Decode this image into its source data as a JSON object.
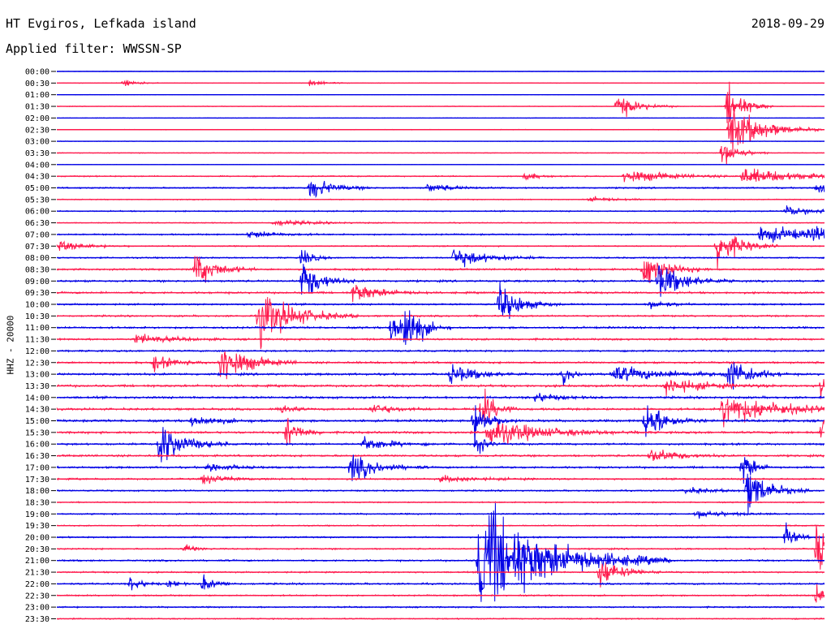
{
  "header": {
    "station": "HT Evgiros, Lefkada island",
    "date": "2018-09-29",
    "filter": "Applied filter: WWSSN-SP",
    "channel": "HHZ - 20000"
  },
  "colors": {
    "even": "#0000e6",
    "odd": "#ff1a4d"
  },
  "chart_data": {
    "type": "line",
    "title": "HT Evgiros, Lefkada island",
    "subtitle": "Applied filter: WWSSN-SP",
    "ylabel": "HHZ - 20000",
    "tick_labels": [
      "00:00",
      "00:30",
      "01:00",
      "01:30",
      "02:00",
      "02:30",
      "03:00",
      "03:30",
      "04:00",
      "04:30",
      "05:00",
      "05:30",
      "06:00",
      "06:30",
      "07:00",
      "07:30",
      "08:00",
      "08:30",
      "09:00",
      "09:30",
      "10:00",
      "10:30",
      "11:00",
      "11:30",
      "12:00",
      "12:30",
      "13:00",
      "13:30",
      "14:00",
      "14:30",
      "15:00",
      "15:30",
      "16:00",
      "16:30",
      "17:00",
      "17:30",
      "18:00",
      "18:30",
      "19:00",
      "19:30",
      "20:00",
      "20:30",
      "21:00",
      "21:30",
      "22:00",
      "22:30",
      "23:00",
      "23:30"
    ],
    "x_range_minutes": [
      0,
      30
    ],
    "noise": [
      0.4,
      0.5,
      0.4,
      0.5,
      0.4,
      0.5,
      0.4,
      0.6,
      0.4,
      1.0,
      1.2,
      0.8,
      1.0,
      0.8,
      1.2,
      1.0,
      1.2,
      1.5,
      1.6,
      1.6,
      1.4,
      1.4,
      1.6,
      1.6,
      1.4,
      1.6,
      1.8,
      1.8,
      1.8,
      1.8,
      1.8,
      1.8,
      1.6,
      1.6,
      1.6,
      1.4,
      1.2,
      1.0,
      1.2,
      1.0,
      1.2,
      1.2,
      1.4,
      1.2,
      1.4,
      1.2,
      1.2,
      1.0
    ],
    "events": [
      {
        "trace": "00:30",
        "t": 2.6,
        "amp": 4,
        "dur": 0.5
      },
      {
        "trace": "00:30",
        "t": 9.9,
        "amp": 3,
        "dur": 0.6
      },
      {
        "trace": "01:30",
        "t": 21.9,
        "amp": 12,
        "dur": 0.8
      },
      {
        "trace": "01:30",
        "t": 26.2,
        "amp": 26,
        "dur": 0.6
      },
      {
        "trace": "02:30",
        "t": 26.3,
        "amp": 26,
        "dur": 1.2
      },
      {
        "trace": "03:30",
        "t": 26.0,
        "amp": 14,
        "dur": 0.6
      },
      {
        "trace": "04:30",
        "t": 18.3,
        "amp": 5,
        "dur": 0.4
      },
      {
        "trace": "04:30",
        "t": 22.2,
        "amp": 7,
        "dur": 1.6
      },
      {
        "trace": "04:30",
        "t": 26.8,
        "amp": 8,
        "dur": 2.2
      },
      {
        "trace": "05:00",
        "t": 9.9,
        "amp": 12,
        "dur": 0.8
      },
      {
        "trace": "05:00",
        "t": 14.5,
        "amp": 4,
        "dur": 1.0
      },
      {
        "trace": "05:00",
        "t": 29.7,
        "amp": 10,
        "dur": 0.4
      },
      {
        "trace": "05:30",
        "t": 20.8,
        "amp": 3,
        "dur": 1.0
      },
      {
        "trace": "06:00",
        "t": 28.5,
        "amp": 5,
        "dur": 1.2
      },
      {
        "trace": "06:30",
        "t": 8.5,
        "amp": 3,
        "dur": 1.5
      },
      {
        "trace": "07:00",
        "t": 7.5,
        "amp": 4,
        "dur": 1.0
      },
      {
        "trace": "07:00",
        "t": 27.5,
        "amp": 8,
        "dur": 2.5
      },
      {
        "trace": "07:00",
        "t": 29.6,
        "amp": 7,
        "dur": 0.6
      },
      {
        "trace": "07:30",
        "t": 0.1,
        "amp": 5,
        "dur": 1.0
      },
      {
        "trace": "07:30",
        "t": 25.8,
        "amp": 22,
        "dur": 0.8
      },
      {
        "trace": "08:00",
        "t": 15.5,
        "amp": 10,
        "dur": 1.2
      },
      {
        "trace": "08:00",
        "t": 9.6,
        "amp": 10,
        "dur": 0.4
      },
      {
        "trace": "08:30",
        "t": 5.4,
        "amp": 18,
        "dur": 0.8
      },
      {
        "trace": "08:30",
        "t": 22.9,
        "amp": 18,
        "dur": 0.9
      },
      {
        "trace": "09:00",
        "t": 9.6,
        "amp": 22,
        "dur": 0.7
      },
      {
        "trace": "09:00",
        "t": 23.5,
        "amp": 18,
        "dur": 1.0
      },
      {
        "trace": "09:30",
        "t": 11.6,
        "amp": 10,
        "dur": 1.0
      },
      {
        "trace": "10:00",
        "t": 17.3,
        "amp": 20,
        "dur": 0.8
      },
      {
        "trace": "10:00",
        "t": 23.2,
        "amp": 5,
        "dur": 0.6
      },
      {
        "trace": "10:30",
        "t": 7.9,
        "amp": 28,
        "dur": 1.3
      },
      {
        "trace": "11:00",
        "t": 13.1,
        "amp": 22,
        "dur": 0.5
      },
      {
        "trace": "11:00",
        "t": 13.6,
        "amp": 28,
        "dur": 0.6
      },
      {
        "trace": "11:30",
        "t": 3.1,
        "amp": 5,
        "dur": 1.2
      },
      {
        "trace": "12:30",
        "t": 3.8,
        "amp": 8,
        "dur": 0.7
      },
      {
        "trace": "12:30",
        "t": 6.4,
        "amp": 22,
        "dur": 1.0
      },
      {
        "trace": "13:00",
        "t": 15.4,
        "amp": 10,
        "dur": 1.0
      },
      {
        "trace": "13:00",
        "t": 19.8,
        "amp": 8,
        "dur": 0.4
      },
      {
        "trace": "13:00",
        "t": 21.7,
        "amp": 8,
        "dur": 2.0
      },
      {
        "trace": "13:00",
        "t": 26.2,
        "amp": 20,
        "dur": 0.8
      },
      {
        "trace": "13:30",
        "t": 23.8,
        "amp": 8,
        "dur": 1.5
      },
      {
        "trace": "13:30",
        "t": 29.9,
        "amp": 16,
        "dur": 0.4
      },
      {
        "trace": "14:00",
        "t": 18.7,
        "amp": 5,
        "dur": 0.8
      },
      {
        "trace": "14:30",
        "t": 8.8,
        "amp": 6,
        "dur": 0.4
      },
      {
        "trace": "14:30",
        "t": 12.3,
        "amp": 6,
        "dur": 0.8
      },
      {
        "trace": "14:30",
        "t": 16.6,
        "amp": 22,
        "dur": 0.5
      },
      {
        "trace": "14:30",
        "t": 26.0,
        "amp": 16,
        "dur": 2.2
      },
      {
        "trace": "15:00",
        "t": 5.3,
        "amp": 6,
        "dur": 1.0
      },
      {
        "trace": "15:00",
        "t": 16.3,
        "amp": 20,
        "dur": 0.6
      },
      {
        "trace": "15:00",
        "t": 23.0,
        "amp": 20,
        "dur": 0.8
      },
      {
        "trace": "15:30",
        "t": 9.0,
        "amp": 16,
        "dur": 0.5
      },
      {
        "trace": "15:30",
        "t": 16.8,
        "amp": 14,
        "dur": 2.0
      },
      {
        "trace": "15:30",
        "t": 29.9,
        "amp": 18,
        "dur": 0.5
      },
      {
        "trace": "16:00",
        "t": 4.0,
        "amp": 24,
        "dur": 0.9
      },
      {
        "trace": "16:00",
        "t": 12.0,
        "amp": 8,
        "dur": 0.9
      },
      {
        "trace": "16:00",
        "t": 16.4,
        "amp": 14,
        "dur": 0.3
      },
      {
        "trace": "16:30",
        "t": 23.2,
        "amp": 8,
        "dur": 1.0
      },
      {
        "trace": "17:00",
        "t": 11.5,
        "amp": 14,
        "dur": 1.0
      },
      {
        "trace": "17:00",
        "t": 5.9,
        "amp": 5,
        "dur": 0.8
      },
      {
        "trace": "17:00",
        "t": 26.8,
        "amp": 20,
        "dur": 0.4
      },
      {
        "trace": "17:30",
        "t": 5.7,
        "amp": 5,
        "dur": 1.0
      },
      {
        "trace": "17:30",
        "t": 15.0,
        "amp": 3,
        "dur": 1.5
      },
      {
        "trace": "18:00",
        "t": 27.0,
        "amp": 24,
        "dur": 0.8
      },
      {
        "trace": "18:00",
        "t": 24.5,
        "amp": 3,
        "dur": 1.2
      },
      {
        "trace": "19:00",
        "t": 25.0,
        "amp": 4,
        "dur": 1.2
      },
      {
        "trace": "20:00",
        "t": 28.5,
        "amp": 12,
        "dur": 0.4
      },
      {
        "trace": "20:30",
        "t": 5.0,
        "amp": 5,
        "dur": 0.4
      },
      {
        "trace": "20:30",
        "t": 29.7,
        "amp": 30,
        "dur": 0.4
      },
      {
        "trace": "21:00",
        "t": 16.5,
        "amp": 60,
        "dur": 2.5
      },
      {
        "trace": "21:30",
        "t": 21.2,
        "amp": 16,
        "dur": 0.8
      },
      {
        "trace": "22:00",
        "t": 2.9,
        "amp": 8,
        "dur": 0.4
      },
      {
        "trace": "22:00",
        "t": 4.4,
        "amp": 5,
        "dur": 0.3
      },
      {
        "trace": "22:00",
        "t": 5.7,
        "amp": 8,
        "dur": 0.5
      },
      {
        "trace": "22:30",
        "t": 29.7,
        "amp": 12,
        "dur": 0.3
      }
    ]
  }
}
